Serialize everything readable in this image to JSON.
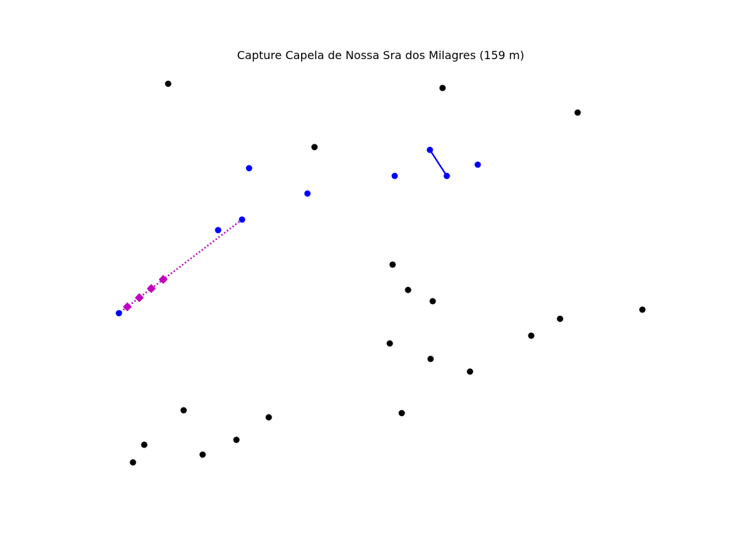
{
  "title": "Capture Capela de Nossa Sra dos Milagres (159 m)",
  "colors": {
    "neutral": "#000000",
    "owned": "#0000ff",
    "route": "#bf00bf"
  },
  "chart_data": {
    "type": "scatter",
    "title": "Capture Capela de Nossa Sra dos Milagres (159 m)",
    "xlabel": "",
    "ylabel": "",
    "grid": false,
    "axes_visible": false,
    "series": [
      {
        "kind": "neutral-nodes",
        "points": [
          [
            239,
            119
          ],
          [
            629,
            125
          ],
          [
            821,
            160
          ],
          [
            447,
            209
          ],
          [
            558,
            376
          ],
          [
            580,
            412
          ],
          [
            615,
            428
          ],
          [
            913,
            440
          ],
          [
            796,
            453
          ],
          [
            755,
            477
          ],
          [
            554,
            488
          ],
          [
            612,
            510
          ],
          [
            668,
            528
          ],
          [
            261,
            583
          ],
          [
            571,
            587
          ],
          [
            382,
            593
          ],
          [
            336,
            625
          ],
          [
            205,
            632
          ],
          [
            288,
            646
          ],
          [
            189,
            657
          ]
        ]
      },
      {
        "kind": "owned-nodes",
        "points": [
          [
            354,
            239
          ],
          [
            437,
            275
          ],
          [
            561,
            250
          ],
          [
            611,
            213
          ],
          [
            635,
            250
          ],
          [
            679,
            234
          ],
          [
            310,
            327
          ],
          [
            344,
            312
          ],
          [
            169,
            445
          ]
        ]
      },
      {
        "kind": "owned-link",
        "from": [
          611,
          213
        ],
        "to": [
          635,
          250
        ]
      },
      {
        "kind": "capture-route",
        "from": [
          344,
          312
        ],
        "to": [
          169,
          445
        ],
        "markers": [
          [
            181,
            436
          ],
          [
            198,
            423
          ],
          [
            215,
            410
          ],
          [
            232,
            397
          ]
        ]
      }
    ]
  }
}
